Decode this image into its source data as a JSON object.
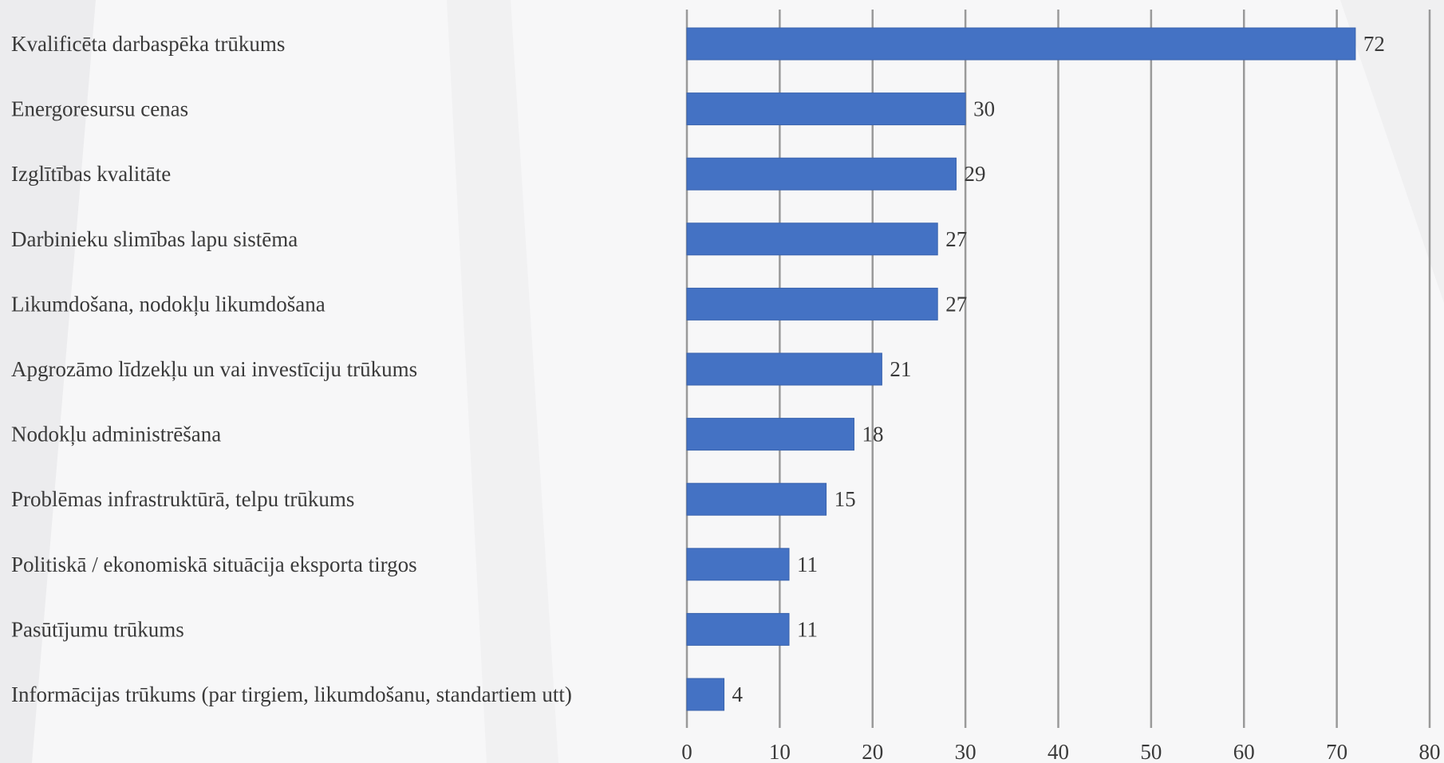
{
  "chart_data": {
    "type": "bar",
    "orientation": "horizontal",
    "title": "",
    "xlabel": "",
    "ylabel": "",
    "xlim": [
      0,
      80
    ],
    "xticks": [
      0,
      10,
      20,
      30,
      40,
      50,
      60,
      70,
      80
    ],
    "grid": "vertical",
    "legend": "none",
    "bar_color": "#4472c4",
    "categories": [
      "Kvalificēta darbaspēka trūkums",
      "Energoresursu cenas",
      "Izglītības kvalitāte",
      "Darbinieku slimības lapu sistēma",
      "Likumdošana, nodokļu likumdošana",
      "Apgrozāmo līdzekļu un vai investīciju trūkums",
      "Nodokļu administrēšana",
      "Problēmas infrastruktūrā, telpu trūkums",
      "Politiskā / ekonomiskā situācija eksporta tirgos",
      "Pasūtījumu trūkums",
      "Informācijas trūkums (par tirgiem, likumdošanu, standartiem utt)"
    ],
    "values": [
      72,
      30,
      29,
      27,
      27,
      21,
      18,
      15,
      11,
      11,
      4
    ]
  }
}
